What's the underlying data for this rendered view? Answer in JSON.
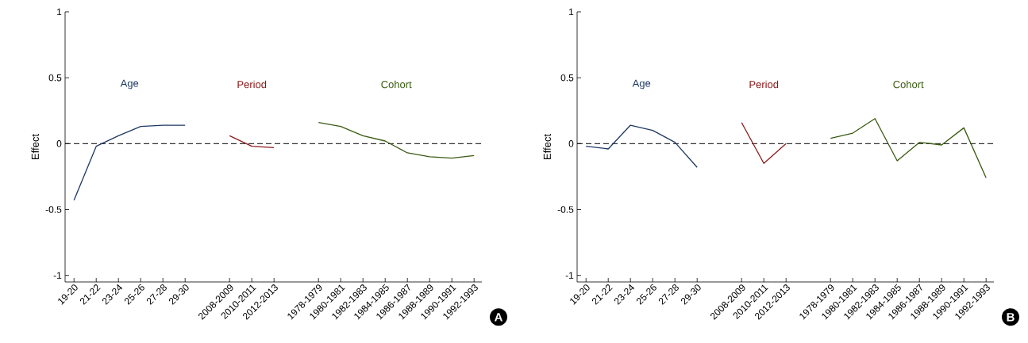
{
  "chart_data": [
    {
      "type": "line",
      "ylabel": "Effect",
      "categories": [
        "19-20",
        "21-22",
        "23-24",
        "25-26",
        "27-28",
        "29-30",
        null,
        "2008-2009",
        "2010-2011",
        "2012-2013",
        null,
        "1978-1979",
        "1980-1981",
        "1982-1983",
        "1984-1985",
        "1986-1987",
        "1988-1989",
        "1990-1991",
        "1992-1993"
      ],
      "series": [
        {
          "name": "Age",
          "color": "#1f3864",
          "values": [
            -0.43,
            -0.02,
            0.06,
            0.13,
            0.14,
            0.14,
            null,
            null,
            null,
            null,
            null,
            null,
            null,
            null,
            null,
            null,
            null,
            null,
            null
          ]
        },
        {
          "name": "Period",
          "color": "#8b1a1a",
          "values": [
            null,
            null,
            null,
            null,
            null,
            null,
            null,
            0.06,
            -0.02,
            -0.03,
            null,
            null,
            null,
            null,
            null,
            null,
            null,
            null,
            null
          ]
        },
        {
          "name": "Cohort",
          "color": "#3a5a10",
          "values": [
            null,
            null,
            null,
            null,
            null,
            null,
            null,
            null,
            null,
            null,
            null,
            0.16,
            0.13,
            0.06,
            0.02,
            -0.07,
            -0.1,
            -0.11,
            -0.09
          ]
        }
      ],
      "ylim": [
        -1.05,
        1
      ],
      "yticks": [
        -1,
        -0.5,
        0,
        0.5,
        1
      ],
      "ref_lines": [
        {
          "axis": "y",
          "value": 0,
          "color": "#000000",
          "line_style": "dashed"
        }
      ],
      "annotations": [
        "A"
      ]
    },
    {
      "type": "line",
      "ylabel": "Effect",
      "categories": [
        "19-20",
        "21-22",
        "23-24",
        "25-26",
        "27-28",
        "29-30",
        null,
        "2008-2009",
        "2010-2011",
        "2012-2013",
        null,
        "1978-1979",
        "1980-1981",
        "1982-1983",
        "1984-1985",
        "1986-1987",
        "1988-1989",
        "1990-1991",
        "1992-1993"
      ],
      "series": [
        {
          "name": "Age",
          "color": "#1f3864",
          "values": [
            -0.02,
            -0.04,
            0.14,
            0.1,
            0.01,
            -0.18,
            null,
            null,
            null,
            null,
            null,
            null,
            null,
            null,
            null,
            null,
            null,
            null,
            null
          ]
        },
        {
          "name": "Period",
          "color": "#8b1a1a",
          "values": [
            null,
            null,
            null,
            null,
            null,
            null,
            null,
            0.16,
            -0.15,
            0.0,
            null,
            null,
            null,
            null,
            null,
            null,
            null,
            null,
            null
          ]
        },
        {
          "name": "Cohort",
          "color": "#3a5a10",
          "values": [
            null,
            null,
            null,
            null,
            null,
            null,
            null,
            null,
            null,
            null,
            null,
            0.04,
            0.08,
            0.19,
            -0.13,
            0.01,
            -0.01,
            0.12,
            -0.26
          ]
        }
      ],
      "ylim": [
        -1.05,
        1
      ],
      "yticks": [
        -1,
        -0.5,
        0,
        0.5,
        1
      ],
      "ref_lines": [
        {
          "axis": "y",
          "value": 0,
          "color": "#000000",
          "line_style": "dashed"
        }
      ],
      "annotations": [
        "B"
      ]
    }
  ]
}
